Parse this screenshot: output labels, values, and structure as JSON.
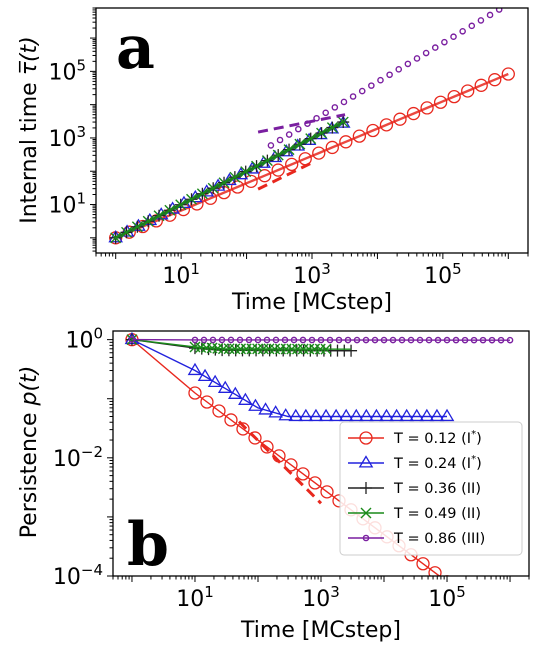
{
  "chart_data": [
    {
      "panel": "a",
      "type": "scatter",
      "xscale": "log",
      "yscale": "log",
      "xlabel": "Time [MCstep]",
      "ylabel": "Internal time τ̅(t)",
      "xlim": [
        0.5,
        2000000
      ],
      "ylim": [
        0.35,
        8000000
      ],
      "x_ticks": [
        {
          "value": 10,
          "base": "10",
          "exp": "1"
        },
        {
          "value": 1000,
          "base": "10",
          "exp": "3"
        },
        {
          "value": 100000,
          "base": "10",
          "exp": "5"
        }
      ],
      "y_ticks": [
        {
          "value": 10,
          "base": "10",
          "exp": "1"
        },
        {
          "value": 1000,
          "base": "10",
          "exp": "3"
        },
        {
          "value": 100000,
          "base": "10",
          "exp": "5"
        }
      ],
      "series": [
        {
          "color": "#e8281e",
          "marker": "circle",
          "x0": 1,
          "x1": 1000000,
          "n": 30,
          "y0": 1,
          "slope": 0.82
        },
        {
          "color": "#2222dd",
          "marker": "triangle",
          "x0": 1,
          "x1": 3000,
          "n": 21,
          "y0": 1,
          "slope": 0.99
        },
        {
          "color": "#222222",
          "marker": "plus",
          "x0": 1,
          "x1": 3000,
          "n": 22,
          "y0": 1,
          "slope": 1.0
        },
        {
          "color": "#1a8a1a",
          "marker": "x",
          "x0": 1,
          "x1": 3000,
          "n": 22,
          "y0": 1,
          "slope": 1.0
        },
        {
          "color": "#7a1fa0",
          "marker": "circle-small",
          "x0": 1,
          "x1": 1000000,
          "n": 44,
          "y0": 1,
          "slope": 1.17,
          "highlight_from": 200
        }
      ],
      "guides": [
        {
          "color": "#e8281e",
          "x": [
            150,
            1000
          ],
          "y": [
            29,
            180
          ]
        },
        {
          "color": "#7a1fa0",
          "x": [
            150,
            3200
          ],
          "y": [
            1500,
            5000
          ]
        }
      ]
    },
    {
      "panel": "b",
      "type": "line",
      "xscale": "log",
      "yscale": "log",
      "xlabel": "Time [MCstep]",
      "ylabel": "Persistence p(t)",
      "xlim": [
        0.5,
        2000000
      ],
      "ylim": [
        0.0001,
        1.4
      ],
      "x_ticks": [
        {
          "value": 10,
          "base": "10",
          "exp": "1"
        },
        {
          "value": 1000,
          "base": "10",
          "exp": "3"
        },
        {
          "value": 100000,
          "base": "10",
          "exp": "5"
        }
      ],
      "y_ticks": [
        {
          "value": 1,
          "base": "10",
          "exp": "0"
        },
        {
          "value": 0.01,
          "base": "10",
          "exp": "−2"
        },
        {
          "value": 0.0001,
          "base": "10",
          "exp": "−4"
        }
      ],
      "legend_position": "lower-right",
      "series": [
        {
          "name": "T = 0.12 (I*)",
          "label_main": "T = 0.12 (I",
          "label_sup": "*",
          "label_end": ")",
          "color": "#e8281e",
          "marker": "circle",
          "points": [
            [
              1,
              1.0
            ],
            [
              10,
              0.125
            ],
            [
              100000,
              8e-05
            ]
          ]
        },
        {
          "name": "T = 0.24 (I*)",
          "label_main": "T = 0.24 (I",
          "label_sup": "*",
          "label_end": ")",
          "color": "#2222dd",
          "marker": "triangle",
          "points": [
            [
              1,
              1.0
            ],
            [
              10,
              0.3
            ],
            [
              30,
              0.15
            ],
            [
              100,
              0.07
            ],
            [
              300,
              0.05
            ],
            [
              100000,
              0.05
            ]
          ]
        },
        {
          "name": "T = 0.36 (II)",
          "label_main": "T = 0.36 (II)",
          "label_sup": "",
          "label_end": "",
          "color": "#222222",
          "marker": "plus",
          "points": [
            [
              1,
              1.0
            ],
            [
              10,
              0.72
            ],
            [
              30,
              0.66
            ],
            [
              3000,
              0.65
            ]
          ]
        },
        {
          "name": "T = 0.49 (II)",
          "label_main": "T = 0.49 (II)",
          "label_sup": "",
          "label_end": "",
          "color": "#1a8a1a",
          "marker": "x",
          "points": [
            [
              1,
              1.0
            ],
            [
              10,
              0.75
            ],
            [
              30,
              0.7
            ],
            [
              3000,
              0.69
            ]
          ]
        },
        {
          "name": "T = 0.86 (III)",
          "label_main": "T = 0.86 (III)",
          "label_sup": "",
          "label_end": "",
          "color": "#7a1fa0",
          "marker": "circle-small",
          "points": [
            [
              1,
              1.0
            ],
            [
              10,
              0.99
            ],
            [
              1000000,
              0.98
            ]
          ]
        }
      ],
      "guides": [
        {
          "color": "#e8281e",
          "x": [
            50,
            1000
          ],
          "y": [
            0.041,
            0.0017
          ]
        }
      ]
    }
  ],
  "panel_a_letter": "a",
  "panel_b_letter": "b",
  "x_label_a": "Time [MCstep]",
  "x_label_b": "Time [MCstep]",
  "y_label_a_prefix": "Internal time ",
  "y_label_a_symbol": "τ̅(t)",
  "y_label_b_prefix": "Persistence ",
  "y_label_b_symbol": "p(t)"
}
